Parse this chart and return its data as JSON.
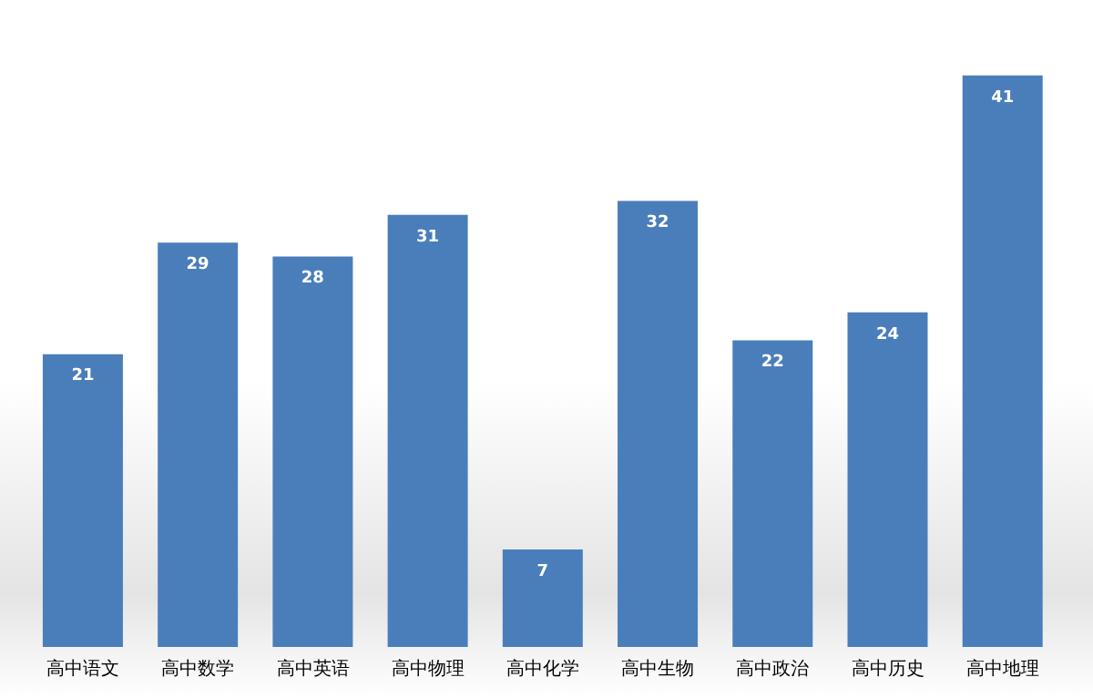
{
  "chart_data": {
    "type": "bar",
    "categories": [
      "高中语文",
      "高中数学",
      "高中英语",
      "高中物理",
      "高中化学",
      "高中生物",
      "高中政治",
      "高中历史",
      "高中地理"
    ],
    "values": [
      21,
      29,
      28,
      31,
      7,
      32,
      22,
      24,
      41
    ],
    "color": "#4a7ebb",
    "data_labels": true,
    "grid": false,
    "legend": false
  }
}
